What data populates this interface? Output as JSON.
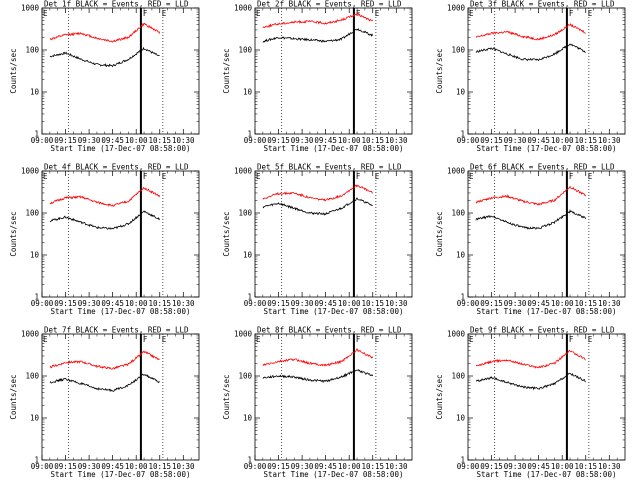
{
  "figure": {
    "x_tick_labels": [
      "09:00",
      "09:15",
      "09:30",
      "09:45",
      "10:00",
      "10:15",
      "10:30"
    ],
    "y_tick_labels": [
      "1",
      "10",
      "100",
      "1000"
    ],
    "ylabel": "Counts/sec",
    "xlabel": "Start Time (17-Dec-07 08:58:00)",
    "markers": {
      "F": "F",
      "E": "E"
    },
    "colors": {
      "events": "#000000",
      "lld": "#ff0000"
    }
  },
  "chart_data": [
    {
      "type": "line",
      "title": "Det 1f BLACK = Events, RED = LLD",
      "xlabel": "Start Time (17-Dec-07 08:58:00)",
      "ylabel": "Counts/sec",
      "ylog": true,
      "ylim": [
        1,
        1000
      ],
      "xlim": [
        "09:00",
        "10:40"
      ],
      "x": [
        "09:05",
        "09:15",
        "09:25",
        "09:35",
        "09:45",
        "09:55",
        "10:05",
        "10:15"
      ],
      "series": [
        {
          "name": "BLACK = Events",
          "values": [
            70,
            85,
            60,
            45,
            42,
            60,
            110,
            70
          ]
        },
        {
          "name": "RED = LLD",
          "values": [
            180,
            230,
            250,
            190,
            160,
            200,
            420,
            260
          ]
        }
      ]
    },
    {
      "type": "line",
      "title": "Det 2f BLACK = Events, RED = LLD",
      "xlabel": "Start Time (17-Dec-07 08:58:00)",
      "ylabel": "Counts/sec",
      "ylog": true,
      "ylim": [
        1,
        1000
      ],
      "xlim": [
        "09:00",
        "10:40"
      ],
      "x": [
        "09:05",
        "09:15",
        "09:25",
        "09:35",
        "09:45",
        "09:55",
        "10:05",
        "10:15"
      ],
      "series": [
        {
          "name": "BLACK = Events",
          "values": [
            160,
            200,
            185,
            175,
            160,
            180,
            320,
            220
          ]
        },
        {
          "name": "RED = LLD",
          "values": [
            350,
            420,
            460,
            480,
            430,
            520,
            720,
            480
          ]
        }
      ]
    },
    {
      "type": "line",
      "title": "Det 3f BLACK = Events, RED = LLD",
      "xlabel": "Start Time (17-Dec-07 08:58:00)",
      "ylabel": "Counts/sec",
      "ylog": true,
      "ylim": [
        1,
        1000
      ],
      "xlim": [
        "09:00",
        "10:40"
      ],
      "x": [
        "09:05",
        "09:15",
        "09:25",
        "09:35",
        "09:45",
        "09:55",
        "10:05",
        "10:15"
      ],
      "series": [
        {
          "name": "BLACK = Events",
          "values": [
            90,
            110,
            80,
            60,
            58,
            80,
            140,
            90
          ]
        },
        {
          "name": "RED = LLD",
          "values": [
            200,
            250,
            270,
            210,
            180,
            230,
            400,
            260
          ]
        }
      ]
    },
    {
      "type": "line",
      "title": "Det 4f BLACK = Events, RED = LLD",
      "xlabel": "Start Time (17-Dec-07 08:58:00)",
      "ylabel": "Counts/sec",
      "ylog": true,
      "ylim": [
        1,
        1000
      ],
      "xlim": [
        "09:00",
        "10:40"
      ],
      "x": [
        "09:05",
        "09:15",
        "09:25",
        "09:35",
        "09:45",
        "09:55",
        "10:05",
        "10:15"
      ],
      "series": [
        {
          "name": "BLACK = Events",
          "values": [
            65,
            80,
            60,
            45,
            42,
            55,
            110,
            70
          ]
        },
        {
          "name": "RED = LLD",
          "values": [
            170,
            230,
            240,
            180,
            150,
            190,
            400,
            250
          ]
        }
      ]
    },
    {
      "type": "line",
      "title": "Det 5f BLACK = Events, RED = LLD",
      "xlabel": "Start Time (17-Dec-07 08:58:00)",
      "ylabel": "Counts/sec",
      "ylog": true,
      "ylim": [
        1,
        1000
      ],
      "xlim": [
        "09:00",
        "10:40"
      ],
      "x": [
        "09:05",
        "09:15",
        "09:25",
        "09:35",
        "09:45",
        "09:55",
        "10:05",
        "10:15"
      ],
      "series": [
        {
          "name": "BLACK = Events",
          "values": [
            140,
            170,
            130,
            100,
            95,
            130,
            220,
            150
          ]
        },
        {
          "name": "RED = LLD",
          "values": [
            220,
            290,
            300,
            230,
            200,
            260,
            460,
            300
          ]
        }
      ]
    },
    {
      "type": "line",
      "title": "Det 6f BLACK = Events, RED = LLD",
      "xlabel": "Start Time (17-Dec-07 08:58:00)",
      "ylabel": "Counts/sec",
      "ylog": true,
      "ylim": [
        1,
        1000
      ],
      "xlim": [
        "09:00",
        "10:40"
      ],
      "x": [
        "09:05",
        "09:15",
        "09:25",
        "09:35",
        "09:45",
        "09:55",
        "10:05",
        "10:15"
      ],
      "series": [
        {
          "name": "BLACK = Events",
          "values": [
            70,
            85,
            60,
            45,
            43,
            60,
            110,
            75
          ]
        },
        {
          "name": "RED = LLD",
          "values": [
            180,
            230,
            250,
            190,
            160,
            200,
            420,
            260
          ]
        }
      ]
    },
    {
      "type": "line",
      "title": "Det 7f BLACK = Events, RED = LLD",
      "xlabel": "Start Time (17-Dec-07 08:58:00)",
      "ylabel": "Counts/sec",
      "ylog": true,
      "ylim": [
        1,
        1000
      ],
      "xlim": [
        "09:00",
        "10:40"
      ],
      "x": [
        "09:05",
        "09:15",
        "09:25",
        "09:35",
        "09:45",
        "09:55",
        "10:05",
        "10:15"
      ],
      "series": [
        {
          "name": "BLACK = Events",
          "values": [
            70,
            85,
            65,
            50,
            45,
            60,
            110,
            70
          ]
        },
        {
          "name": "RED = LLD",
          "values": [
            160,
            210,
            220,
            170,
            150,
            190,
            380,
            240
          ]
        }
      ]
    },
    {
      "type": "line",
      "title": "Det 8f BLACK = Events, RED = LLD",
      "xlabel": "Start Time (17-Dec-07 08:58:00)",
      "ylabel": "Counts/sec",
      "ylog": true,
      "ylim": [
        1,
        1000
      ],
      "xlim": [
        "09:00",
        "10:40"
      ],
      "x": [
        "09:05",
        "09:15",
        "09:25",
        "09:35",
        "09:45",
        "09:55",
        "10:05",
        "10:15"
      ],
      "series": [
        {
          "name": "BLACK = Events",
          "values": [
            90,
            100,
            95,
            80,
            75,
            95,
            140,
            100
          ]
        },
        {
          "name": "RED = LLD",
          "values": [
            180,
            220,
            250,
            200,
            180,
            220,
            420,
            270
          ]
        }
      ]
    },
    {
      "type": "line",
      "title": "Det 9f BLACK = Events, RED = LLD",
      "xlabel": "Start Time (17-Dec-07 08:58:00)",
      "ylabel": "Counts/sec",
      "ylog": true,
      "ylim": [
        1,
        1000
      ],
      "xlim": [
        "09:00",
        "10:40"
      ],
      "x": [
        "09:05",
        "09:15",
        "09:25",
        "09:35",
        "09:45",
        "09:55",
        "10:05",
        "10:15"
      ],
      "series": [
        {
          "name": "BLACK = Events",
          "values": [
            75,
            90,
            70,
            55,
            50,
            65,
            115,
            75
          ]
        },
        {
          "name": "RED = LLD",
          "values": [
            170,
            220,
            240,
            190,
            160,
            200,
            400,
            250
          ]
        }
      ]
    }
  ]
}
